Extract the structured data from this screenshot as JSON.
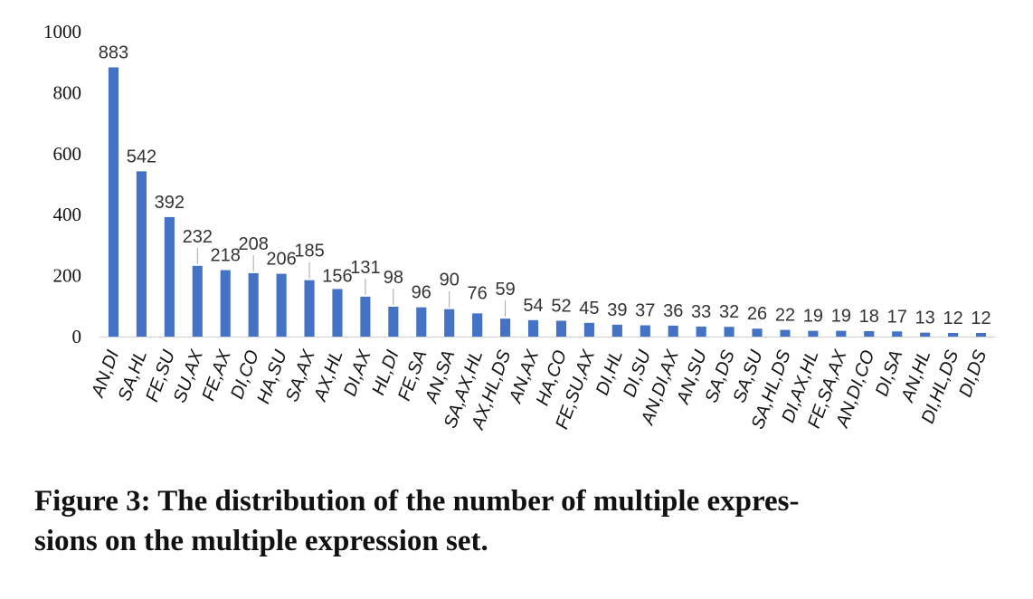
{
  "chart_data": {
    "type": "bar",
    "categories": [
      "AN,DI",
      "SA,HL",
      "FE,SU",
      "SU,AX",
      "FE,AX",
      "DI,CO",
      "HA,SU",
      "SA,AX",
      "AX,HL",
      "DI,AX",
      "HL,DI",
      "FE,SA",
      "AN,SA",
      "SA,AX,HL",
      "AX,HL,DS",
      "AN,AX",
      "HA,CO",
      "FE,SU,AX",
      "DI,HL",
      "DI,SU",
      "AN,DI,AX",
      "AN,SU",
      "SA,DS",
      "SA,SU",
      "SA,HL,DS",
      "DI,AX,HL",
      "FE,SA,AX",
      "AN,DI,CO",
      "DI,SA",
      "AN,HL",
      "DI,HL,DS",
      "DI,DS"
    ],
    "values": [
      883,
      542,
      392,
      232,
      218,
      208,
      206,
      185,
      156,
      131,
      98,
      96,
      90,
      76,
      59,
      54,
      52,
      45,
      39,
      37,
      36,
      33,
      32,
      26,
      22,
      19,
      19,
      18,
      17,
      13,
      12,
      12
    ],
    "value_labels": [
      "883",
      "542",
      "392",
      "232",
      "218",
      "208",
      "206",
      "185",
      "156",
      "131",
      "98",
      "96",
      "90",
      "76",
      "59",
      "54",
      "52",
      "45",
      "39",
      "37",
      "36",
      "33",
      "32",
      "26",
      "22",
      "19",
      "19",
      "18",
      "17",
      "13",
      "12",
      "12"
    ],
    "yticks": [
      "0",
      "200",
      "400",
      "600",
      "800",
      "1000"
    ],
    "ylim": [
      0,
      1000
    ],
    "bar_color": "#4472C4",
    "grid": false,
    "legend": "none",
    "title": "",
    "xlabel": "",
    "ylabel": ""
  },
  "caption": "Figure 3: The distribution of the number of multiple expres-\nsions on the multiple expression set."
}
